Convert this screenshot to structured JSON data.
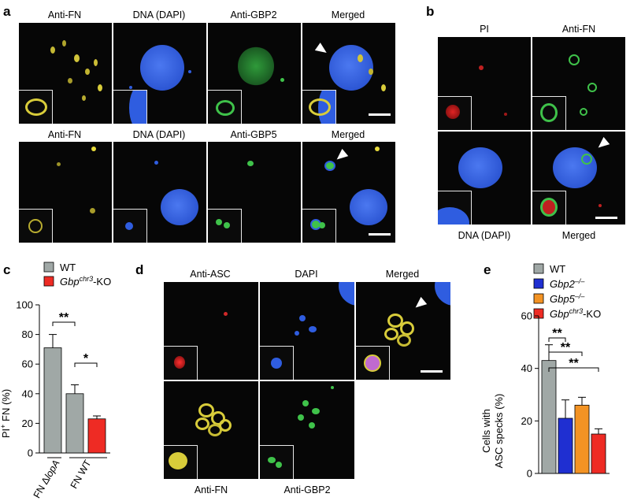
{
  "panel_letters": {
    "a": "a",
    "b": "b",
    "c": "c",
    "d": "d",
    "e": "e"
  },
  "panel_a": {
    "row1": [
      "Anti-FN",
      "DNA (DAPI)",
      "Anti-GBP2",
      "Merged"
    ],
    "row2": [
      "Anti-FN",
      "DNA (DAPI)",
      "Anti-GBP5",
      "Merged"
    ]
  },
  "panel_b": {
    "top": [
      "PI",
      "Anti-FN"
    ],
    "bottom": [
      "DNA (DAPI)",
      "Merged"
    ]
  },
  "panel_d": {
    "top": [
      "Anti-ASC",
      "DAPI",
      "Merged"
    ],
    "bottom": [
      "Anti-FN",
      "Anti-GBP2"
    ]
  },
  "colors": {
    "wt": "#a0a8a6",
    "ko": "#ee2b24",
    "gbp2": "#1f2fd1",
    "gbp5": "#f39324",
    "fn": "#d8cc3a",
    "dapi": "#2f5de0",
    "gbp": "#3fc24a"
  },
  "chart_c": {
    "type": "bar",
    "legend": [
      {
        "name": "WT",
        "color": "#a0a8a6",
        "prefix": "WT",
        "sup": "",
        "suffix": ""
      },
      {
        "name": "Gbpchr3-KO",
        "color": "#ee2b24",
        "prefix": "Gbp",
        "sup": "chr3",
        "suffix": "-KO"
      }
    ],
    "ylabel_main": "PI",
    "ylabel_sup": "+",
    "ylabel_rest": " FN (%)",
    "ylim": [
      0,
      100
    ],
    "yticks": [
      0,
      20,
      40,
      60,
      80,
      100
    ],
    "bars": [
      {
        "value": 71,
        "error": 9,
        "color": "#a0a8a6"
      },
      {
        "value": 40,
        "error": 6,
        "color": "#a0a8a6"
      },
      {
        "value": 23,
        "error": 2,
        "color": "#ee2b24"
      }
    ],
    "group_labels": [
      {
        "text": "FN ΔlopA",
        "prefix": "FN Δ",
        "italic": "lopA"
      },
      {
        "text": "FN WT",
        "prefix": "FN WT",
        "italic": ""
      }
    ],
    "significance": [
      "**",
      "*"
    ]
  },
  "chart_e": {
    "type": "bar",
    "legend": [
      {
        "name": "WT",
        "color": "#a0a8a6",
        "prefix": "WT",
        "sup": "",
        "suffix": ""
      },
      {
        "name": "Gbp2-/-",
        "color": "#1f2fd1",
        "prefix": "Gbp2",
        "sup": "–/–",
        "suffix": ""
      },
      {
        "name": "Gbp5-/-",
        "color": "#f39324",
        "prefix": "Gbp5",
        "sup": "–/–",
        "suffix": ""
      },
      {
        "name": "Gbpchr3-KO",
        "color": "#ee2b24",
        "prefix": "Gbp",
        "sup": "chr3",
        "suffix": "-KO"
      }
    ],
    "ylabel_line1": "Cells with",
    "ylabel_line2": "ASC specks (%)",
    "ylim": [
      0,
      60
    ],
    "yticks": [
      0,
      20,
      40,
      60
    ],
    "bars": [
      {
        "value": 43,
        "error": 6,
        "color": "#a0a8a6"
      },
      {
        "value": 21,
        "error": 7,
        "color": "#1f2fd1"
      },
      {
        "value": 26,
        "error": 3,
        "color": "#f39324"
      },
      {
        "value": 15,
        "error": 2,
        "color": "#ee2b24"
      }
    ],
    "significance": [
      "**",
      "**",
      "**"
    ]
  }
}
